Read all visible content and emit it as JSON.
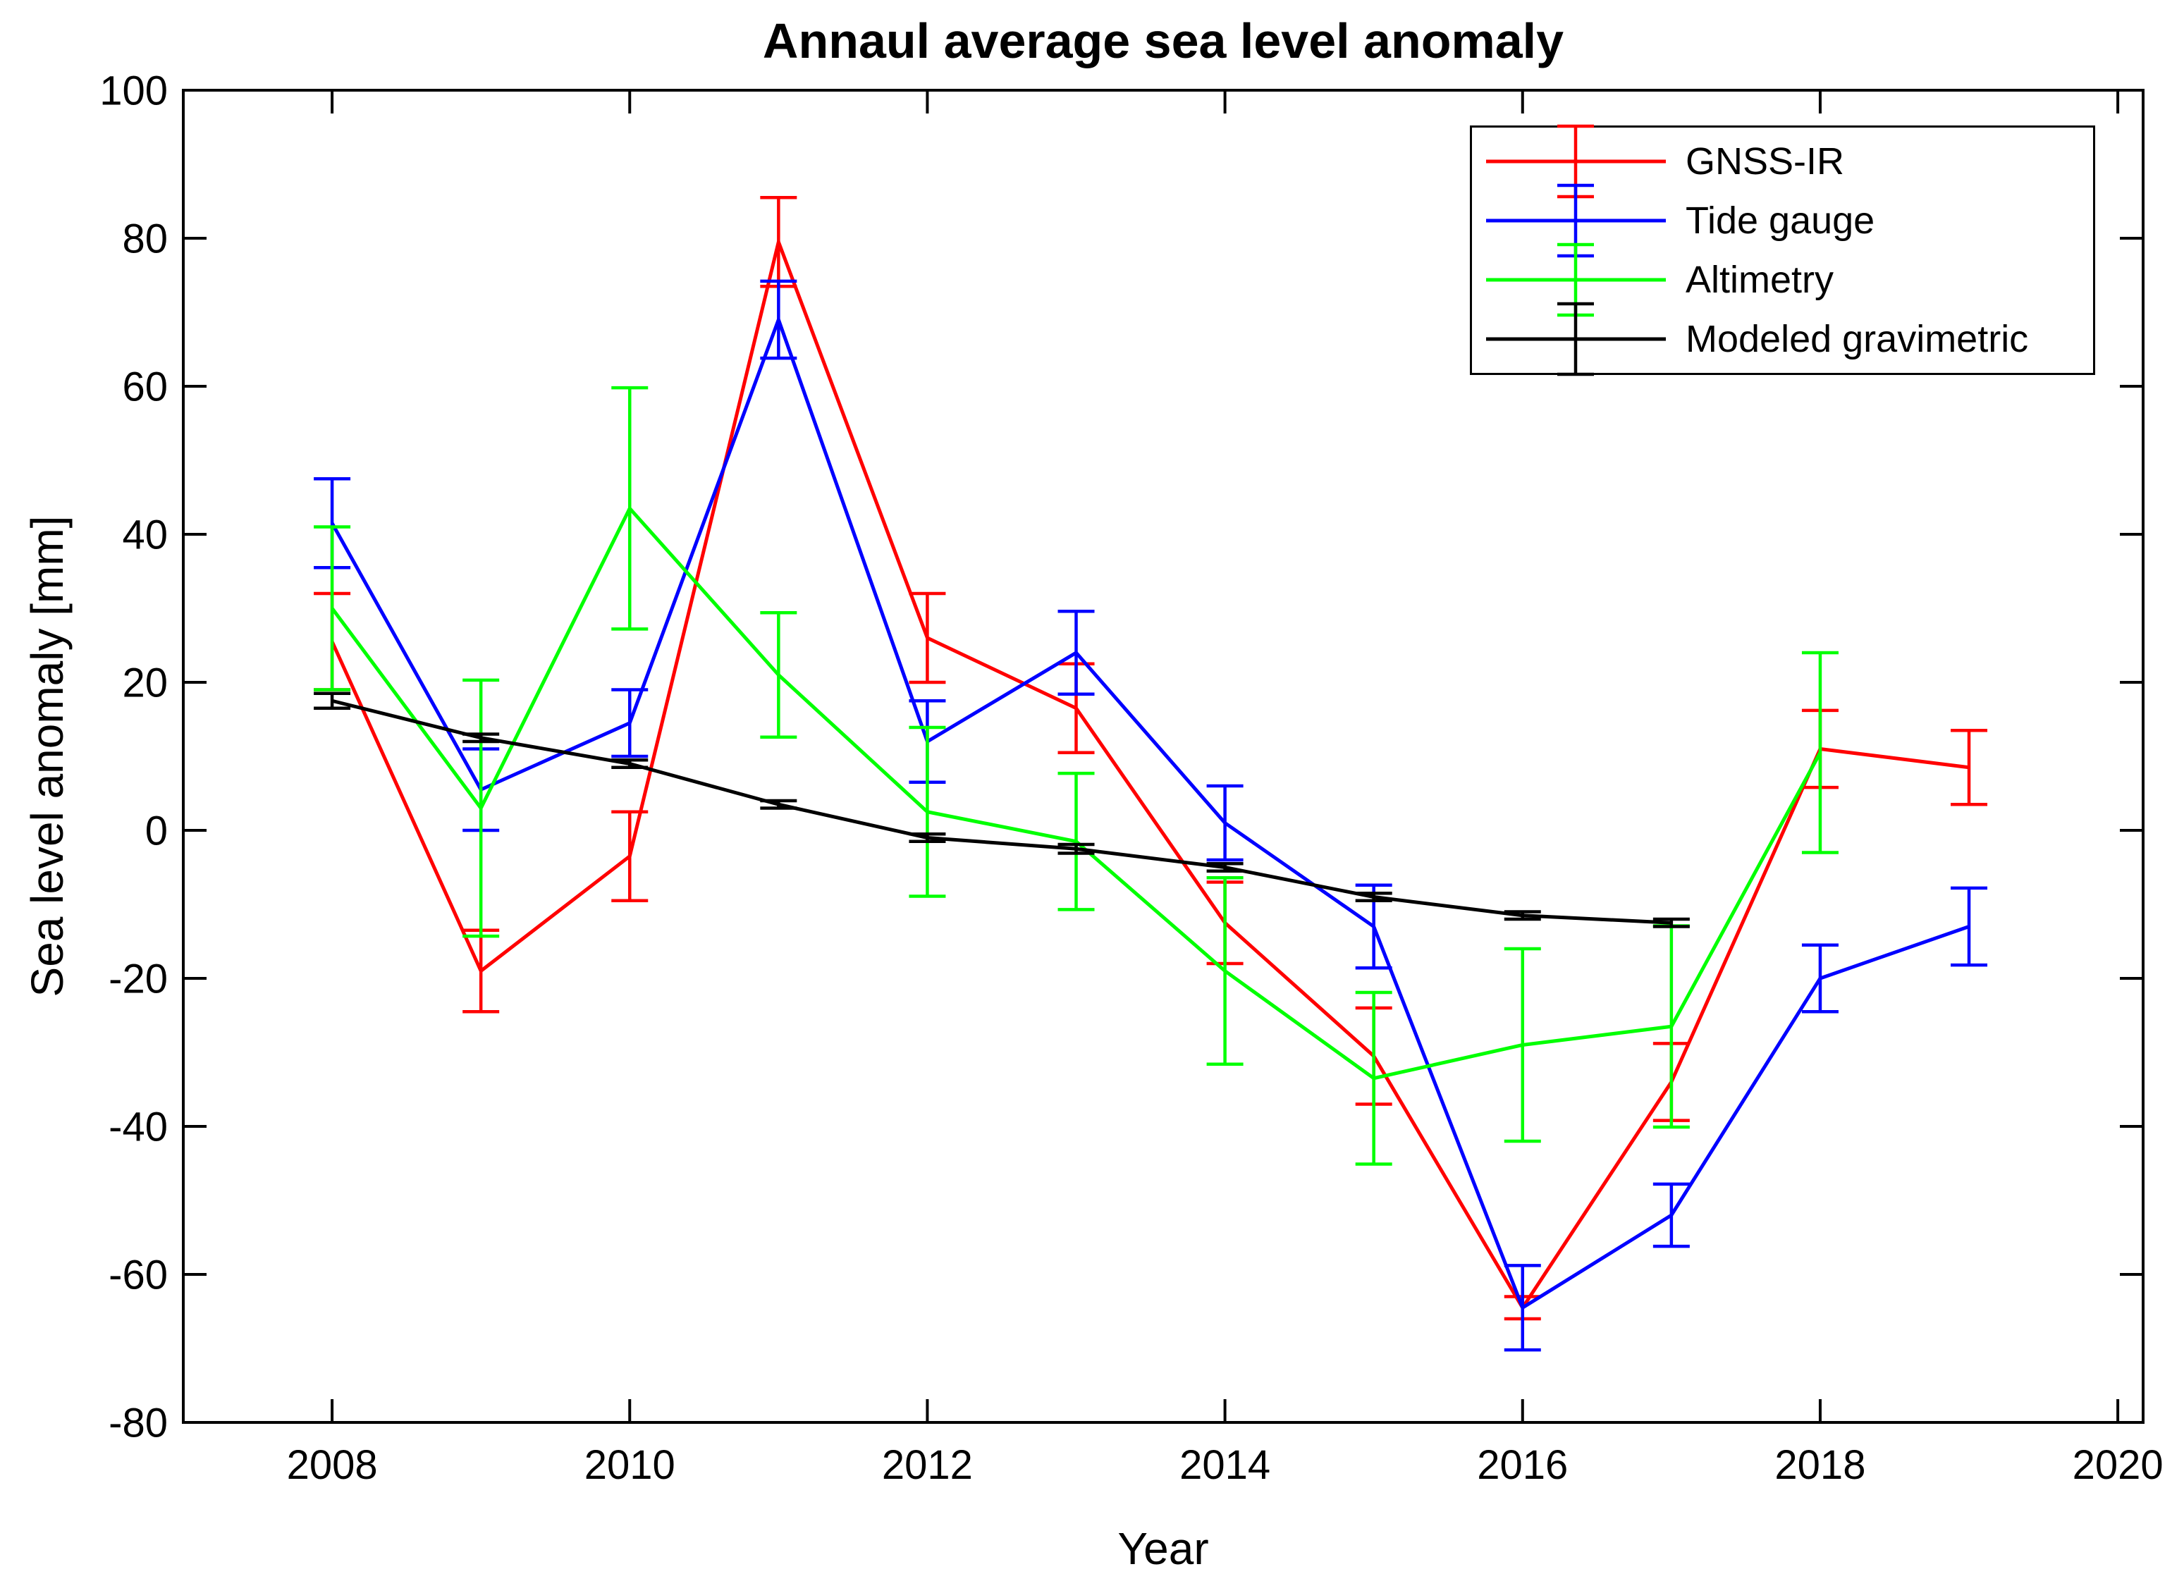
{
  "title": "Annaul average sea level anomaly",
  "chart_data": {
    "type": "line",
    "title": "Annaul average sea level anomaly",
    "xlabel": "Year",
    "ylabel": "Sea level anomaly [mm]",
    "xlim": [
      2007,
      2020.17
    ],
    "ylim": [
      -80,
      100
    ],
    "x_ticks": [
      2008,
      2010,
      2012,
      2014,
      2016,
      2018,
      2020
    ],
    "y_ticks": [
      100,
      80,
      60,
      40,
      20,
      0,
      -20,
      -40,
      -60,
      -80
    ],
    "grid": false,
    "box": true,
    "legend_position": "upper right",
    "error_bars": true,
    "axis_color": "#000000",
    "series": [
      {
        "name": "GNSS-IR",
        "color": "#ff0000",
        "years": [
          2008,
          2009,
          2010,
          2011,
          2012,
          2013,
          2014,
          2015,
          2016,
          2017,
          2018,
          2019
        ],
        "values": [
          25.5,
          -19,
          -3.5,
          79.5,
          26,
          16.5,
          -12.5,
          -30.5,
          -64.5,
          -34,
          11,
          8.5
        ],
        "errors": [
          6.5,
          5.5,
          6,
          6,
          6,
          6,
          5.5,
          6.5,
          1.5,
          5.2,
          5.2,
          5
        ]
      },
      {
        "name": "Tide gauge",
        "color": "#0000ff",
        "years": [
          2008,
          2009,
          2010,
          2011,
          2012,
          2013,
          2014,
          2015,
          2016,
          2017,
          2018,
          2019
        ],
        "values": [
          41.5,
          5.5,
          14.5,
          69,
          12,
          24,
          1,
          -13,
          -64.5,
          -52,
          -20,
          -13
        ],
        "errors": [
          6,
          5.5,
          4.5,
          5.2,
          5.5,
          5.6,
          5,
          5.6,
          5.7,
          4.2,
          4.5,
          5.2
        ]
      },
      {
        "name": "Altimetry",
        "color": "#00ff00",
        "years": [
          2008,
          2009,
          2010,
          2011,
          2012,
          2013,
          2014,
          2015,
          2016,
          2017,
          2018
        ],
        "values": [
          30,
          3,
          43.5,
          21,
          2.5,
          -1.5,
          -19,
          -33.5,
          -29,
          -26.5,
          10.5
        ],
        "errors": [
          11,
          17.3,
          16.3,
          8.4,
          11.4,
          9.2,
          12.6,
          11.6,
          13,
          13.6,
          13.5
        ]
      },
      {
        "name": "Modeled gravimetric",
        "color": "#000000",
        "years": [
          2008,
          2009,
          2010,
          2011,
          2012,
          2013,
          2014,
          2015,
          2016,
          2017
        ],
        "values": [
          17.5,
          12.5,
          9,
          3.5,
          -1,
          -2.5,
          -5,
          -9,
          -11.5,
          -12.5
        ],
        "errors": [
          1,
          0.5,
          0.5,
          0.5,
          0.5,
          0.6,
          0.5,
          0.5,
          0.5,
          0.5
        ]
      }
    ]
  }
}
